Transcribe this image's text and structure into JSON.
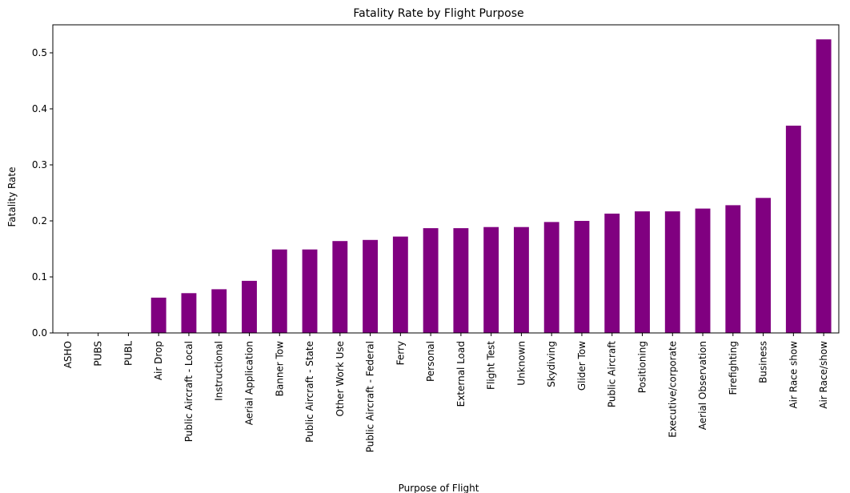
{
  "chart_data": {
    "type": "bar",
    "title": "Fatality Rate by Flight Purpose",
    "xlabel": "Purpose of Flight",
    "ylabel": "Fatality Rate",
    "ylim": [
      0,
      0.55
    ],
    "yticks": [
      "0.0",
      "0.1",
      "0.2",
      "0.3",
      "0.4",
      "0.5"
    ],
    "grid": false,
    "bar_color": "#800080",
    "categories": [
      "ASHO",
      "PUBS",
      "PUBL",
      "Air Drop",
      "Public Aircraft - Local",
      "Instructional",
      "Aerial Application",
      "Banner Tow",
      "Public Aircraft - State",
      "Other Work Use",
      "Public Aircraft - Federal",
      "Ferry",
      "Personal",
      "External Load",
      "Flight Test",
      "Unknown",
      "Skydiving",
      "Glider Tow",
      "Public Aircraft",
      "Positioning",
      "Executive/corporate",
      "Aerial Observation",
      "Firefighting",
      "Business",
      "Air Race show",
      "Air Race/show"
    ],
    "values": [
      0.0,
      0.0,
      0.0,
      0.063,
      0.071,
      0.078,
      0.093,
      0.149,
      0.149,
      0.164,
      0.166,
      0.172,
      0.187,
      0.187,
      0.189,
      0.189,
      0.198,
      0.2,
      0.213,
      0.217,
      0.217,
      0.222,
      0.228,
      0.241,
      0.37,
      0.524
    ]
  }
}
